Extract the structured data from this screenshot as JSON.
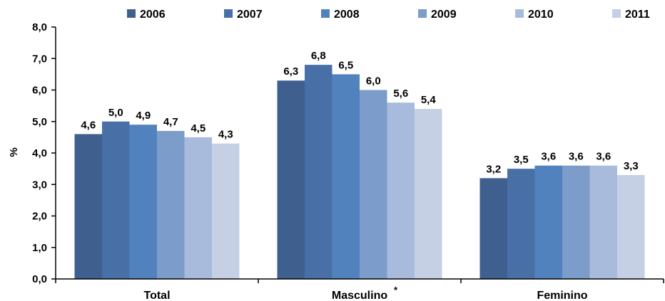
{
  "chart_data": {
    "type": "bar",
    "ylabel": "%",
    "ylim": [
      0,
      8
    ],
    "yticks": [
      "0,0",
      "1,0",
      "2,0",
      "3,0",
      "4,0",
      "5,0",
      "6,0",
      "7,0",
      "8,0"
    ],
    "categories": [
      "Total",
      "Masculino",
      "Feminino"
    ],
    "category_note": [
      "",
      "*",
      ""
    ],
    "legend_position": "top",
    "grid": false,
    "series": [
      {
        "name": "2006",
        "color": "#3f5f8f",
        "values": [
          4.6,
          6.3,
          3.2
        ],
        "labels": [
          "4,6",
          "6,3",
          "3,2"
        ]
      },
      {
        "name": "2007",
        "color": "#4870a6",
        "values": [
          5.0,
          6.8,
          3.5
        ],
        "labels": [
          "5,0",
          "6,8",
          "3,5"
        ]
      },
      {
        "name": "2008",
        "color": "#5282bd",
        "values": [
          4.9,
          6.5,
          3.6
        ],
        "labels": [
          "4,9",
          "6,5",
          "3,6"
        ]
      },
      {
        "name": "2009",
        "color": "#7c9cc9",
        "values": [
          4.7,
          6.0,
          3.6
        ],
        "labels": [
          "4,7",
          "6,0",
          "3,6"
        ]
      },
      {
        "name": "2010",
        "color": "#a8bbdc",
        "values": [
          4.5,
          5.6,
          3.6
        ],
        "labels": [
          "4,5",
          "5,6",
          "3,6"
        ]
      },
      {
        "name": "2011",
        "color": "#c5d0e5",
        "values": [
          4.3,
          5.4,
          3.3
        ],
        "labels": [
          "4,3",
          "5,4",
          "3,3"
        ]
      }
    ]
  }
}
